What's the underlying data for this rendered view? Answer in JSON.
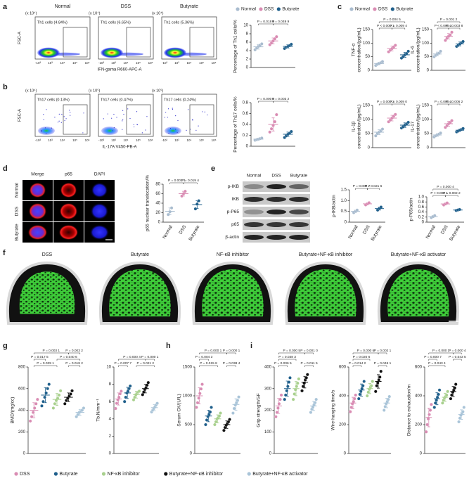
{
  "panel_labels": [
    "a",
    "b",
    "c",
    "d",
    "e",
    "f",
    "g",
    "h",
    "i"
  ],
  "flow": {
    "conditions": [
      "Normal",
      "DSS",
      "Butyrate"
    ],
    "xticks": [
      "-10³",
      "10³",
      "10⁴",
      "10⁵",
      "10⁶"
    ],
    "ylabel": "FSC-A",
    "rows": [
      {
        "scales": [
          "(x 10⁴)",
          "(x 10⁴)",
          "(x 10⁴)"
        ],
        "gates": [
          "Th1 cells (4.84%)",
          "Th1 cells (6.65%)",
          "Th1 cells (5.36%)"
        ],
        "xlabel": "IFN-gama R660-APC-A"
      },
      {
        "scales": [
          "(x 10⁴)",
          "(x 10⁵)",
          "(x 10⁵)"
        ],
        "gates": [
          "Th17 cells (0.13%)",
          "Th17 cells (0.47%)",
          "Th17 cells (0.24%)"
        ],
        "xlabel": "IL-17A V450-PB-A"
      }
    ]
  },
  "microscopy": {
    "columns": [
      "Merge",
      "p65",
      "DAPI"
    ],
    "rows": [
      "Normal",
      "DSS",
      "Butyrate"
    ]
  },
  "western": {
    "columns": [
      "Normal",
      "DSS",
      "Butyrate"
    ],
    "rows": [
      "p-IKB",
      "IKB",
      "p-P65",
      "p65",
      "β-actin"
    ]
  },
  "microct": {
    "groups": [
      "DSS",
      "Butyrate",
      "NF-κB inhibitor",
      "Butyrate+NF-κB inhibitor",
      "Butyrate+NF-κB activator"
    ]
  },
  "chart_data": [
    {
      "type": "dot",
      "ylabel": "Percentage of Th1 cells/%",
      "ylim": [
        0,
        10
      ],
      "yticks": [
        0,
        2,
        4,
        6,
        8,
        10
      ],
      "legend": [
        "Normal",
        "DSS",
        "Butyrate"
      ],
      "pvalues": [
        "P = 0.018 6",
        "P = 0.049 9"
      ],
      "series": [
        {
          "color": "#a9bccf",
          "values": [
            4.2,
            4.6,
            5.0,
            5.3,
            5.6
          ],
          "mean": 4.9,
          "sd": 0.55
        },
        {
          "color": "#d98cb3",
          "values": [
            5.4,
            5.8,
            6.3,
            6.8,
            7.3
          ],
          "mean": 6.3,
          "sd": 0.7
        },
        {
          "color": "#1f5f8b",
          "values": [
            4.5,
            4.8,
            5.0,
            5.2,
            5.5
          ],
          "mean": 5.0,
          "sd": 0.4
        }
      ]
    },
    {
      "type": "dot",
      "ylabel": "Percentage of Th17 cells/%",
      "ylim": [
        0,
        0.8
      ],
      "yticks": [
        0,
        0.2,
        0.4,
        0.6,
        0.8
      ],
      "pvalues": [
        "P = 0.000 3",
        "P = 0.003 2"
      ],
      "series": [
        {
          "color": "#a9bccf",
          "values": [
            0.11,
            0.12,
            0.13,
            0.14,
            0.15
          ],
          "mean": 0.13,
          "sd": 0.02
        },
        {
          "color": "#d98cb3",
          "values": [
            0.26,
            0.32,
            0.38,
            0.45,
            0.58
          ],
          "mean": 0.4,
          "sd": 0.12
        },
        {
          "color": "#1f5f8b",
          "values": [
            0.16,
            0.19,
            0.22,
            0.24,
            0.27
          ],
          "mean": 0.22,
          "sd": 0.04
        }
      ]
    },
    {
      "type": "dot",
      "ylabel": [
        "TNF-α",
        "concentration/(pg/mL)"
      ],
      "ylim": [
        0,
        150
      ],
      "yticks": [
        0,
        50,
        100,
        150
      ],
      "legend": [
        "Normal",
        "DSS",
        "Butyrate"
      ],
      "pvalues": [
        "P = 0.004 5",
        "P < 0.000 1",
        "P = 0.009 4"
      ],
      "series": [
        {
          "color": "#a9bccf",
          "values": [
            18,
            22,
            25,
            28,
            32
          ],
          "mean": 25,
          "sd": 5
        },
        {
          "color": "#d98cb3",
          "values": [
            68,
            74,
            80,
            86,
            92
          ],
          "mean": 80,
          "sd": 9
        },
        {
          "color": "#1f5f8b",
          "values": [
            45,
            50,
            57,
            62,
            70
          ],
          "mean": 57,
          "sd": 9
        }
      ]
    },
    {
      "type": "dot",
      "ylabel": [
        "IL-6",
        "concentration/(pg/mL)"
      ],
      "ylim": [
        0,
        150
      ],
      "yticks": [
        0,
        50,
        100,
        150
      ],
      "pvalues": [
        "P = 0.001 2",
        "P < 0.000 1",
        "P = 0.003 8"
      ],
      "series": [
        {
          "color": "#a9bccf",
          "values": [
            50,
            55,
            60,
            63,
            70
          ],
          "mean": 60,
          "sd": 7
        },
        {
          "color": "#d98cb3",
          "values": [
            110,
            118,
            125,
            130,
            140
          ],
          "mean": 125,
          "sd": 10
        },
        {
          "color": "#1f5f8b",
          "values": [
            88,
            92,
            97,
            102,
            106
          ],
          "mean": 97,
          "sd": 7
        }
      ]
    },
    {
      "type": "dot",
      "ylabel": [
        "IL-1β",
        "concentration/(pg/mL)"
      ],
      "ylim": [
        0,
        150
      ],
      "yticks": [
        0,
        50,
        100,
        150
      ],
      "pvalues": [
        "P = 0.000 2",
        "P = 0.009 0"
      ],
      "series": [
        {
          "color": "#a9bccf",
          "values": [
            42,
            50,
            55,
            60,
            66
          ],
          "mean": 55,
          "sd": 9
        },
        {
          "color": "#d98cb3",
          "values": [
            92,
            98,
            105,
            112,
            118
          ],
          "mean": 105,
          "sd": 10
        },
        {
          "color": "#1f5f8b",
          "values": [
            70,
            74,
            80,
            85,
            90
          ],
          "mean": 80,
          "sd": 8
        }
      ]
    },
    {
      "type": "dot",
      "ylabel": [
        "IL-17",
        "concentration/(pg/mL)"
      ],
      "ylim": [
        0,
        150
      ],
      "yticks": [
        0,
        50,
        100,
        150
      ],
      "pvalues": [
        "P = 0.000 1",
        "P = 0.006 2"
      ],
      "series": [
        {
          "color": "#a9bccf",
          "values": [
            38,
            42,
            45,
            48,
            52
          ],
          "mean": 45,
          "sd": 5
        },
        {
          "color": "#d98cb3",
          "values": [
            72,
            78,
            85,
            90,
            96
          ],
          "mean": 85,
          "sd": 9
        },
        {
          "color": "#1f5f8b",
          "values": [
            56,
            59,
            62,
            65,
            68
          ],
          "mean": 62,
          "sd": 4
        }
      ]
    },
    {
      "type": "dot",
      "ylabel": "p65 nuclear translocation/%",
      "ylim": [
        0,
        80
      ],
      "yticks": [
        0,
        20,
        40,
        60,
        80
      ],
      "categories": [
        "Normal",
        "DSS",
        "Butyrate"
      ],
      "pvalues": [
        "P = 0.001 1",
        "P = 0.019 4"
      ],
      "series": [
        {
          "color": "#a9bccf",
          "values": [
            16,
            22,
            30
          ],
          "mean": 23,
          "sd": 7
        },
        {
          "color": "#d98cb3",
          "values": [
            55,
            60,
            65
          ],
          "mean": 60,
          "sd": 5
        },
        {
          "color": "#1f5f8b",
          "values": [
            28,
            38,
            45
          ],
          "mean": 37,
          "sd": 8
        }
      ]
    },
    {
      "type": "dot",
      "ylabel": "p-IKB/actin",
      "ylim": [
        0,
        1.5
      ],
      "yticks": [
        0,
        0.5,
        {
          "value": 1,
          "label": "1.0"
        },
        1.5
      ],
      "categories": [
        "Normal",
        "DSS",
        "Butyrate"
      ],
      "pvalues": [
        "P = 0.000 7",
        "P = 0.021 6"
      ],
      "series": [
        {
          "color": "#a9bccf",
          "values": [
            0.44,
            0.5,
            0.56
          ],
          "mean": 0.5,
          "sd": 0.06
        },
        {
          "color": "#d98cb3",
          "values": [
            0.8,
            0.85,
            0.9
          ],
          "mean": 0.85,
          "sd": 0.05
        },
        {
          "color": "#1f5f8b",
          "values": [
            0.56,
            0.63,
            0.7
          ],
          "mean": 0.63,
          "sd": 0.07
        }
      ]
    },
    {
      "type": "dot",
      "ylabel": "p-P65/actin",
      "ylim": [
        0,
        1
      ],
      "yticks": [
        0,
        0.2,
        0.4,
        0.6,
        0.8,
        {
          "value": 1,
          "label": "1.0"
        }
      ],
      "categories": [
        "Normal",
        "DSS",
        "Butyrate"
      ],
      "pvalues": [
        "P = 0.000 4",
        "P < 0.000 1",
        "P = 0.002 2"
      ],
      "series": [
        {
          "color": "#a9bccf",
          "values": [
            0.18,
            0.22,
            0.26
          ],
          "mean": 0.22,
          "sd": 0.04
        },
        {
          "color": "#d98cb3",
          "values": [
            0.68,
            0.72,
            0.76
          ],
          "mean": 0.72,
          "sd": 0.04
        },
        {
          "color": "#1f5f8b",
          "values": [
            0.46,
            0.48,
            0.5
          ],
          "mean": 0.48,
          "sd": 0.02
        }
      ]
    },
    {
      "type": "dot",
      "ylabel": "BMD/(mg/cc)",
      "ylim": [
        0,
        800
      ],
      "yticks": [
        0,
        200,
        400,
        600,
        800
      ],
      "legend": [
        "DSS",
        "Butyrate",
        "NF-κB inhibitor",
        "Butyrate+NF-κB inhibitor",
        "Butyrate+NF-κB activator"
      ],
      "pvalues": [
        "P = 0.003 1",
        "P = 0.003 2",
        "P = 0.017 5",
        "P = 0.040 6",
        "P = 0.039 1",
        "P = 0.018 2"
      ],
      "series": [
        {
          "color": "#d98cb3",
          "values": [
            300,
            340,
            380,
            420,
            460,
            500
          ],
          "mean": 400,
          "sd": 70
        },
        {
          "color": "#1f5f8b",
          "values": [
            440,
            480,
            520,
            560,
            600,
            640
          ],
          "mean": 540,
          "sd": 70
        },
        {
          "color": "#a8d08d",
          "values": [
            420,
            460,
            490,
            510,
            540,
            580
          ],
          "mean": 500,
          "sd": 55
        },
        {
          "color": "#111111",
          "values": [
            460,
            490,
            510,
            530,
            550,
            580
          ],
          "mean": 520,
          "sd": 40
        },
        {
          "color": "#a9c4d8",
          "values": [
            340,
            360,
            380,
            390,
            400,
            420
          ],
          "mean": 380,
          "sd": 28
        }
      ]
    },
    {
      "type": "dot",
      "ylabel": "Tb.N/mm⁻¹",
      "ylim": [
        0,
        10
      ],
      "yticks": [
        0,
        2,
        4,
        6,
        8,
        10
      ],
      "pvalues": [
        "P = 0.000 4",
        "P = 0.000 1",
        "P = 0.007 7",
        "P = 0.021 2"
      ],
      "series": [
        {
          "color": "#d98cb3",
          "values": [
            5.2,
            5.8,
            6.2,
            6.5,
            6.9,
            7.2
          ],
          "mean": 6.3,
          "sd": 0.7
        },
        {
          "color": "#1f5f8b",
          "values": [
            6.0,
            6.5,
            7.0,
            7.2,
            7.5,
            7.8
          ],
          "mean": 7.0,
          "sd": 0.65
        },
        {
          "color": "#a8d08d",
          "values": [
            6.2,
            6.5,
            6.8,
            7.0,
            7.1,
            7.2
          ],
          "mean": 6.8,
          "sd": 0.4
        },
        {
          "color": "#111111",
          "values": [
            6.8,
            7.1,
            7.4,
            7.6,
            7.9,
            8.2
          ],
          "mean": 7.5,
          "sd": 0.5
        },
        {
          "color": "#a9c4d8",
          "values": [
            4.8,
            5.0,
            5.2,
            5.4,
            5.6,
            5.8
          ],
          "mean": 5.3,
          "sd": 0.35
        }
      ]
    },
    {
      "type": "dot",
      "ylabel": "Serum CK/(U/L)",
      "ylim": [
        0,
        1500
      ],
      "yticks": [
        0,
        500,
        1000,
        1500
      ],
      "pvalues": [
        "P = 0.000 1",
        "P = 0.000 1",
        "P = 0.004 3",
        "P = 0.015 8",
        "P = 0.038 4"
      ],
      "series": [
        {
          "color": "#d98cb3",
          "values": [
            800,
            880,
            960,
            1040,
            1120,
            1200
          ],
          "mean": 1000,
          "sd": 140
        },
        {
          "color": "#1f5f8b",
          "values": [
            500,
            580,
            640,
            680,
            720,
            800
          ],
          "mean": 650,
          "sd": 100
        },
        {
          "color": "#a8d08d",
          "values": [
            500,
            550,
            600,
            620,
            650,
            700
          ],
          "mean": 600,
          "sd": 70
        },
        {
          "color": "#111111",
          "values": [
            400,
            450,
            490,
            520,
            550,
            590
          ],
          "mean": 500,
          "sd": 65
        },
        {
          "color": "#a9c4d8",
          "values": [
            700,
            780,
            840,
            880,
            920,
            980
          ],
          "mean": 850,
          "sd": 100
        }
      ]
    },
    {
      "type": "dot",
      "ylabel": "Grip strength/GF",
      "ylim": [
        0,
        400
      ],
      "yticks": [
        0,
        100,
        200,
        300,
        400
      ],
      "pvalues": [
        "P = 0.000 5",
        "P = 0.001 0",
        "P = 0.038 3",
        "P = 0.006 5",
        "P = 0.011 5"
      ],
      "series": [
        {
          "color": "#d98cb3",
          "values": [
            170,
            190,
            210,
            230,
            250,
            270
          ],
          "mean": 220,
          "sd": 35
        },
        {
          "color": "#1f5f8b",
          "values": [
            250,
            270,
            290,
            310,
            330,
            350
          ],
          "mean": 300,
          "sd": 35
        },
        {
          "color": "#a8d08d",
          "values": [
            250,
            275,
            295,
            310,
            325,
            345
          ],
          "mean": 300,
          "sd": 33
        },
        {
          "color": "#111111",
          "values": [
            290,
            310,
            325,
            340,
            350,
            365
          ],
          "mean": 330,
          "sd": 27
        },
        {
          "color": "#a9c4d8",
          "values": [
            190,
            205,
            215,
            225,
            235,
            250
          ],
          "mean": 220,
          "sd": 21
        }
      ]
    },
    {
      "type": "dot",
      "ylabel": "Wire-hanging time/s",
      "ylim": [
        0,
        600
      ],
      "yticks": [
        0,
        200,
        400,
        600
      ],
      "pvalues": [
        "P = 0.000 6",
        "P = 0.002 1",
        "P = 0.020 6",
        "P = 0.014 2",
        "P = 0.045 1"
      ],
      "series": [
        {
          "color": "#d98cb3",
          "values": [
            290,
            320,
            345,
            360,
            380,
            405
          ],
          "mean": 350,
          "sd": 40
        },
        {
          "color": "#1f5f8b",
          "values": [
            380,
            410,
            430,
            450,
            470,
            500
          ],
          "mean": 440,
          "sd": 42
        },
        {
          "color": "#a8d08d",
          "values": [
            400,
            425,
            445,
            460,
            470,
            500
          ],
          "mean": 450,
          "sd": 35
        },
        {
          "color": "#111111",
          "values": [
            430,
            470,
            490,
            510,
            530,
            570
          ],
          "mean": 500,
          "sd": 47
        },
        {
          "color": "#a9c4d8",
          "values": [
            300,
            325,
            345,
            360,
            375,
            395
          ],
          "mean": 350,
          "sd": 33
        }
      ]
    },
    {
      "type": "dot",
      "ylabel": "Distance to exhaustion/m",
      "ylim": [
        0,
        600
      ],
      "yticks": [
        0,
        200,
        400,
        600
      ],
      "pvalues": [
        "P = 0.000 1",
        "P = 0.000 4",
        "P = 0.000 7",
        "P = 0.043 5",
        "P = 0.043 4"
      ],
      "series": [
        {
          "color": "#d98cb3",
          "values": [
            150,
            200,
            240,
            270,
            300,
            340
          ],
          "mean": 250,
          "sd": 65
        },
        {
          "color": "#1f5f8b",
          "values": [
            320,
            350,
            370,
            390,
            410,
            440
          ],
          "mean": 380,
          "sd": 42
        },
        {
          "color": "#a8d08d",
          "values": [
            350,
            370,
            385,
            395,
            405,
            430
          ],
          "mean": 390,
          "sd": 28
        },
        {
          "color": "#111111",
          "values": [
            380,
            405,
            425,
            440,
            455,
            480
          ],
          "mean": 430,
          "sd": 35
        },
        {
          "color": "#a9c4d8",
          "values": [
            220,
            245,
            265,
            280,
            290,
            320
          ],
          "mean": 270,
          "sd": 33
        }
      ]
    }
  ]
}
